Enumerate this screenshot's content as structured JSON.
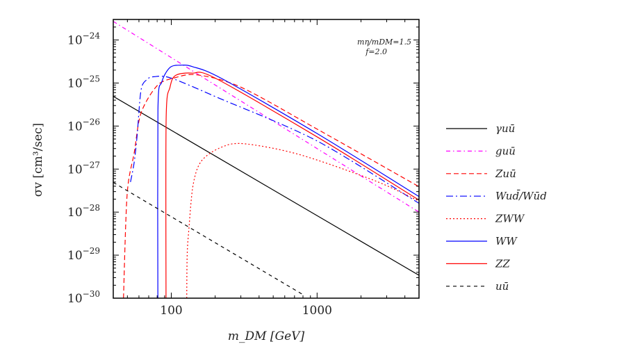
{
  "chart_data": {
    "type": "line",
    "title": "",
    "xlabel": "m_DM [GeV]",
    "ylabel": "σv [cm³/sec]",
    "xscale": "log",
    "yscale": "log",
    "xlim": [
      40,
      5000
    ],
    "ylim": [
      1e-30,
      3e-24
    ],
    "x_tick_labels": [
      "100",
      "1000"
    ],
    "x_ticks": [
      100,
      1000
    ],
    "y_ticks": [
      -24,
      -25,
      -26,
      -27,
      -28,
      -29,
      -30
    ],
    "y_tick_base": "10",
    "grid": false,
    "legend_placement": "right-outside",
    "annotation": [
      "mη/mDM=1.5",
      "f=2.0"
    ],
    "series": [
      {
        "name": "γuū",
        "color": "#000000",
        "style": "solid",
        "points": [
          [
            40,
            4.9e-26
          ],
          [
            5000,
            3.4e-30
          ]
        ]
      },
      {
        "name": "guū",
        "color": "#ff00ff",
        "style": "dashdot",
        "points": [
          [
            40,
            2.7e-24
          ],
          [
            5000,
            1e-28
          ]
        ]
      },
      {
        "name": "Zuū",
        "color": "#ff0000",
        "style": "dashed",
        "points": [
          [
            47,
            1e-30
          ],
          [
            49.8,
            2.6e-28
          ],
          [
            55.7,
            2.4e-27
          ],
          [
            62,
            2e-26
          ],
          [
            80,
            8.7e-26
          ],
          [
            104,
            1.3e-25
          ],
          [
            150,
            1.55e-25
          ],
          [
            300,
            8e-26
          ],
          [
            1000,
            8.5e-27
          ],
          [
            5000,
            3.9e-28
          ]
        ]
      },
      {
        "name": "Wud̄/Wūd",
        "color": "#0000ff",
        "style": "longdashdot",
        "points": [
          [
            52.5,
            5e-28
          ],
          [
            55.6,
            1.4e-27
          ],
          [
            58.3,
            6e-27
          ],
          [
            62,
            6.8e-26
          ],
          [
            68,
            1.2e-25
          ],
          [
            76,
            1.4e-25
          ],
          [
            100,
            1.3e-25
          ],
          [
            211,
            4.5e-26
          ],
          [
            1000,
            4.5e-27
          ],
          [
            5000,
            1.6e-28
          ]
        ]
      },
      {
        "name": "ZWW",
        "color": "#ff0000",
        "style": "dotted",
        "points": [
          [
            127.6,
            1e-30
          ],
          [
            128.5,
            1e-29
          ],
          [
            132,
            4e-29
          ],
          [
            141,
            4.2e-28
          ],
          [
            160,
            1.5e-27
          ],
          [
            215,
            3.1e-27
          ],
          [
            311,
            3.9e-27
          ],
          [
            748,
            2.2e-27
          ],
          [
            2480,
            5.4e-28
          ],
          [
            5000,
            1.8e-28
          ]
        ]
      },
      {
        "name": "WW",
        "color": "#0000ff",
        "style": "solid",
        "points": [
          [
            80.9,
            1e-30
          ],
          [
            81,
            2.4e-26
          ],
          [
            86,
            1.05e-25
          ],
          [
            98,
            2.3e-25
          ],
          [
            116,
            2.6e-25
          ],
          [
            140,
            2.4e-25
          ],
          [
            223,
            1.26e-25
          ],
          [
            1000,
            6.7e-27
          ],
          [
            5000,
            2.3e-28
          ]
        ]
      },
      {
        "name": "ZZ",
        "color": "#ff0000",
        "style": "solid",
        "points": [
          [
            92,
            1e-30
          ],
          [
            92.2,
            1.5e-26
          ],
          [
            98,
            8e-26
          ],
          [
            107,
            1.5e-25
          ],
          [
            139,
            1.7e-25
          ],
          [
            200,
            1.3e-25
          ],
          [
            1000,
            5.6e-27
          ],
          [
            5000,
            1.9e-28
          ]
        ]
      },
      {
        "name": "uū",
        "color": "#000000",
        "style": "shortdashed",
        "points": [
          [
            40,
            4.9e-28
          ],
          [
            803,
            1.2e-30
          ]
        ]
      }
    ]
  }
}
